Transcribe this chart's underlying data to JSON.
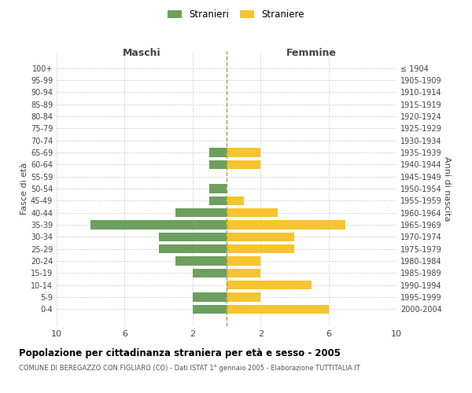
{
  "age_groups": [
    "100+",
    "95-99",
    "90-94",
    "85-89",
    "80-84",
    "75-79",
    "70-74",
    "65-69",
    "60-64",
    "55-59",
    "50-54",
    "45-49",
    "40-44",
    "35-39",
    "30-34",
    "25-29",
    "20-24",
    "15-19",
    "10-14",
    "5-9",
    "0-4"
  ],
  "birth_years": [
    "≤ 1904",
    "1905-1909",
    "1910-1914",
    "1915-1919",
    "1920-1924",
    "1925-1929",
    "1930-1934",
    "1935-1939",
    "1940-1944",
    "1945-1949",
    "1950-1954",
    "1955-1959",
    "1960-1964",
    "1965-1969",
    "1970-1974",
    "1975-1979",
    "1980-1984",
    "1985-1989",
    "1990-1994",
    "1995-1999",
    "2000-2004"
  ],
  "maschi": [
    0,
    0,
    0,
    0,
    0,
    0,
    0,
    1,
    1,
    0,
    1,
    1,
    3,
    8,
    4,
    4,
    3,
    2,
    0,
    2,
    2
  ],
  "femmine": [
    0,
    0,
    0,
    0,
    0,
    0,
    0,
    2,
    2,
    0,
    0,
    1,
    3,
    7,
    4,
    4,
    2,
    2,
    5,
    2,
    6
  ],
  "color_maschi": "#6d9f5e",
  "color_femmine": "#f5c430",
  "color_dashed": "#a0a050",
  "title": "Popolazione per cittadinanza straniera per età e sesso - 2005",
  "subtitle": "COMUNE DI BEREGAZZO CON FIGLIARO (CO) - Dati ISTAT 1° gennaio 2005 - Elaborazione TUTTITALIA.IT",
  "ylabel_left": "Fasce di età",
  "ylabel_right": "Anni di nascita",
  "xlabel_maschi": "Maschi",
  "xlabel_femmine": "Femmine",
  "legend_maschi": "Stranieri",
  "legend_femmine": "Straniere",
  "xlim": 10,
  "background_color": "#ffffff",
  "grid_color": "#cccccc"
}
